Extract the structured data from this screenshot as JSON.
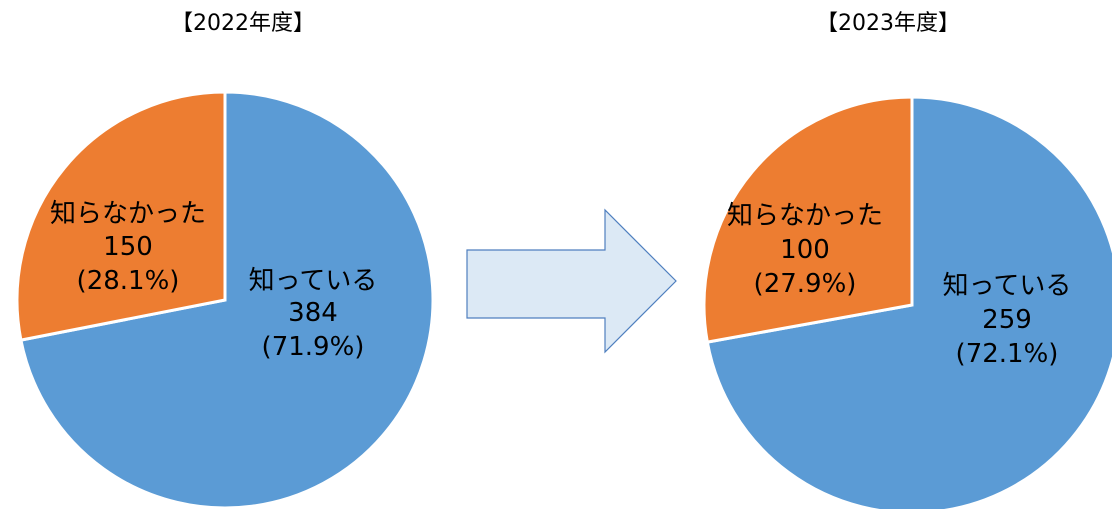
{
  "chart_data": [
    {
      "type": "pie",
      "title": "【2022年度】",
      "slices": [
        {
          "name": "知っている",
          "value": 384,
          "percent": "(71.9%)",
          "color": "#5b9bd5"
        },
        {
          "name": "知らなかった",
          "value": 150,
          "percent": "(28.1%)",
          "color": "#ed7d31"
        }
      ],
      "start": "12 o'clock",
      "direction": "clockwise"
    },
    {
      "type": "pie",
      "title": "【2023年度】",
      "slices": [
        {
          "name": "知っている",
          "value": 259,
          "percent": "(72.1%)",
          "color": "#5b9bd5"
        },
        {
          "name": "知らなかった",
          "value": 100,
          "percent": "(27.9%)",
          "color": "#ed7d31"
        }
      ],
      "start": "12 o'clock",
      "direction": "clockwise"
    }
  ],
  "arrow": {
    "fill": "#dce9f5",
    "stroke": "#4f7fbf"
  },
  "colors": {
    "slice_border": "#ffffff"
  }
}
